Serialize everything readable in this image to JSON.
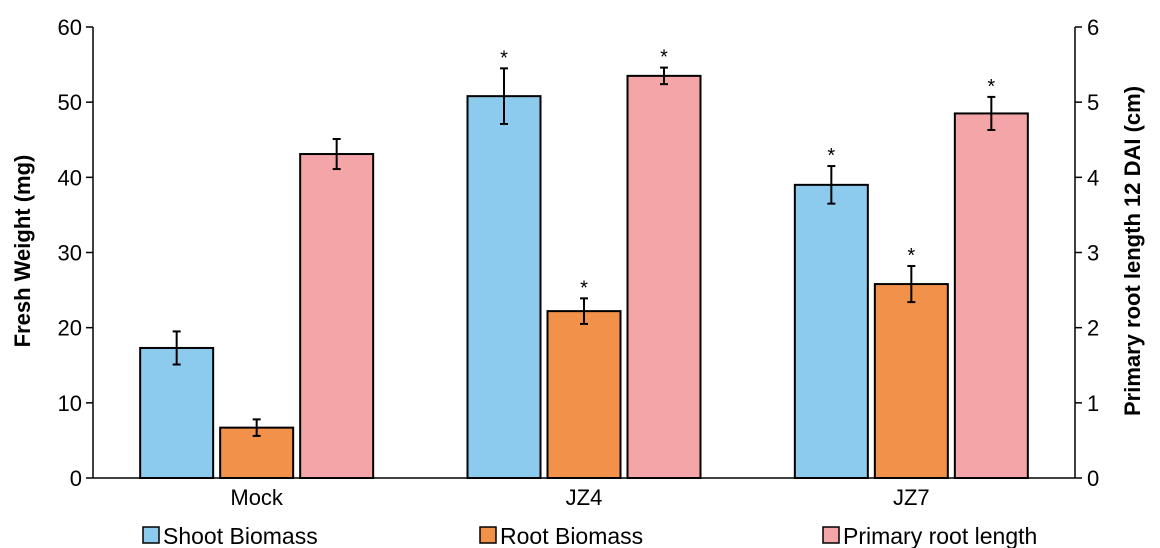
{
  "chart_data": {
    "type": "bar",
    "categories": [
      "Mock",
      "JZ4",
      "JZ7"
    ],
    "series": [
      {
        "name": "Shoot Biomass",
        "axis": "left",
        "color": "#8DCBEE",
        "values": [
          17.3,
          50.8,
          39.0
        ],
        "errors": [
          2.2,
          3.7,
          2.5
        ],
        "significant": [
          false,
          true,
          true
        ]
      },
      {
        "name": "Root Biomass",
        "axis": "left",
        "color": "#F2914A",
        "values": [
          6.7,
          22.2,
          25.8
        ],
        "errors": [
          1.1,
          1.7,
          2.4
        ],
        "significant": [
          false,
          true,
          true
        ]
      },
      {
        "name": "Primary root length",
        "axis": "right",
        "color": "#F4A5A8",
        "values": [
          4.31,
          5.35,
          4.85
        ],
        "errors": [
          0.2,
          0.11,
          0.22
        ],
        "significant": [
          false,
          true,
          true
        ]
      }
    ],
    "significance_marker": "*",
    "ylabel": "Fresh Weight (mg)",
    "ylim": [
      0,
      60
    ],
    "yticks": [
      "0",
      "10",
      "20",
      "30",
      "40",
      "50",
      "60"
    ],
    "y2label": "Primary root length 12 DAI (cm)",
    "y2lim": [
      0,
      6
    ],
    "y2ticks": [
      "0",
      "1",
      "2",
      "3",
      "4",
      "5",
      "6"
    ],
    "legend_position": "bottom",
    "grid": false
  }
}
